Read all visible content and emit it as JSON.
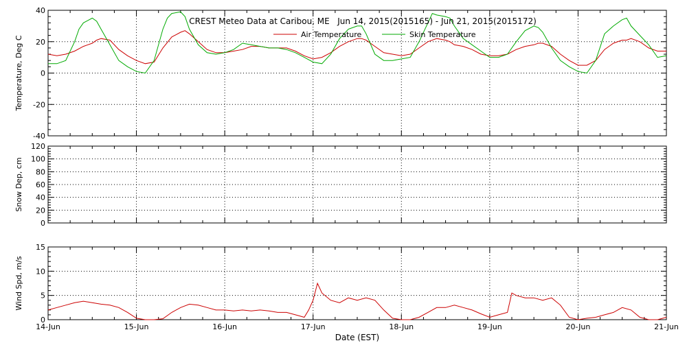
{
  "title": "CREST Meteo Data at Caribou, ME   Jun 14, 2015(2015165) - Jun 21, 2015(2015172)",
  "xlabel": "Date (EST)",
  "x_ticks": [
    "14-Jun",
    "15-Jun",
    "16-Jun",
    "17-Jun",
    "18-Jun",
    "19-Jun",
    "20-Jun",
    "21-Jun"
  ],
  "colors": {
    "air": "#cc0000",
    "skin": "#00aa00",
    "grid": "#000000"
  },
  "chart_data": [
    {
      "type": "line",
      "ylabel": "Temperature, Deg C",
      "xlim": [
        0,
        7
      ],
      "ylim": [
        -40,
        40
      ],
      "yticks": [
        -40,
        -20,
        0,
        20,
        40
      ],
      "legend_position": "top-center",
      "series": [
        {
          "name": "Air Temperature",
          "color": "#cc0000",
          "x": [
            0,
            0.1,
            0.2,
            0.3,
            0.4,
            0.5,
            0.55,
            0.6,
            0.7,
            0.8,
            0.9,
            1.0,
            1.1,
            1.2,
            1.3,
            1.4,
            1.5,
            1.55,
            1.6,
            1.7,
            1.8,
            1.9,
            2.0,
            2.1,
            2.2,
            2.3,
            2.4,
            2.5,
            2.6,
            2.7,
            2.8,
            2.9,
            3.0,
            3.1,
            3.2,
            3.3,
            3.4,
            3.5,
            3.55,
            3.6,
            3.7,
            3.8,
            3.9,
            4.0,
            4.1,
            4.2,
            4.3,
            4.4,
            4.5,
            4.55,
            4.6,
            4.7,
            4.8,
            4.9,
            5.0,
            5.1,
            5.2,
            5.3,
            5.4,
            5.5,
            5.55,
            5.6,
            5.7,
            5.8,
            5.9,
            6.0,
            6.1,
            6.2,
            6.3,
            6.4,
            6.5,
            6.55,
            6.6,
            6.7,
            6.8,
            6.9,
            7.0
          ],
          "y": [
            12,
            11,
            12,
            14,
            17,
            19,
            21,
            22,
            21,
            15,
            11,
            8,
            6,
            7,
            16,
            23,
            26,
            27,
            25,
            20,
            15,
            13,
            13,
            14,
            15,
            17,
            17,
            16,
            16,
            16,
            14,
            11,
            9,
            10,
            13,
            17,
            20,
            22,
            22,
            21,
            17,
            13,
            12,
            11,
            12,
            16,
            20,
            22,
            21,
            20,
            18,
            17,
            15,
            12,
            11,
            11,
            12,
            15,
            17,
            18,
            19,
            19,
            17,
            12,
            8,
            5,
            5,
            8,
            15,
            19,
            21,
            21,
            22,
            20,
            16,
            14,
            14
          ]
        },
        {
          "name": "Skin Temperature",
          "color": "#00aa00",
          "x": [
            0,
            0.1,
            0.2,
            0.3,
            0.35,
            0.4,
            0.5,
            0.55,
            0.6,
            0.7,
            0.8,
            0.9,
            1.0,
            1.1,
            1.2,
            1.3,
            1.35,
            1.4,
            1.5,
            1.55,
            1.6,
            1.7,
            1.8,
            1.9,
            2.0,
            2.1,
            2.2,
            2.3,
            2.4,
            2.5,
            2.6,
            2.7,
            2.8,
            2.9,
            3.0,
            3.1,
            3.2,
            3.3,
            3.4,
            3.5,
            3.55,
            3.6,
            3.7,
            3.8,
            3.9,
            4.0,
            4.1,
            4.2,
            4.3,
            4.35,
            4.4,
            4.5,
            4.55,
            4.6,
            4.7,
            4.8,
            4.9,
            5.0,
            5.1,
            5.2,
            5.3,
            5.4,
            5.5,
            5.55,
            5.6,
            5.7,
            5.8,
            5.9,
            6.0,
            6.1,
            6.2,
            6.3,
            6.4,
            6.5,
            6.55,
            6.6,
            6.7,
            6.8,
            6.9,
            7.0
          ],
          "y": [
            6,
            6,
            8,
            20,
            28,
            32,
            35,
            33,
            28,
            18,
            8,
            4,
            1,
            0,
            8,
            28,
            35,
            38,
            39,
            36,
            28,
            18,
            13,
            12,
            13,
            15,
            19,
            18,
            17,
            16,
            16,
            15,
            13,
            10,
            7,
            6,
            12,
            22,
            28,
            30,
            30,
            25,
            12,
            8,
            8,
            9,
            10,
            20,
            32,
            38,
            37,
            36,
            35,
            30,
            22,
            18,
            14,
            10,
            10,
            12,
            20,
            27,
            30,
            29,
            26,
            16,
            8,
            4,
            1,
            0,
            8,
            25,
            30,
            34,
            35,
            30,
            24,
            18,
            10,
            11
          ]
        }
      ]
    },
    {
      "type": "line",
      "ylabel": "Snow Dep, cm",
      "xlim": [
        0,
        7
      ],
      "ylim": [
        0,
        120
      ],
      "yticks": [
        0,
        20,
        40,
        60,
        80,
        100,
        120
      ],
      "series": []
    },
    {
      "type": "line",
      "ylabel": "Wind Spd, m/s",
      "xlim": [
        0,
        7
      ],
      "ylim": [
        0,
        15
      ],
      "yticks": [
        0,
        5,
        10,
        15
      ],
      "series": [
        {
          "name": "",
          "color": "#cc0000",
          "x": [
            0,
            0.1,
            0.2,
            0.3,
            0.4,
            0.5,
            0.6,
            0.7,
            0.8,
            0.9,
            1.0,
            1.1,
            1.2,
            1.3,
            1.4,
            1.5,
            1.6,
            1.7,
            1.8,
            1.9,
            2.0,
            2.1,
            2.2,
            2.3,
            2.4,
            2.5,
            2.6,
            2.7,
            2.8,
            2.9,
            2.95,
            3.0,
            3.05,
            3.1,
            3.2,
            3.3,
            3.4,
            3.5,
            3.6,
            3.7,
            3.8,
            3.9,
            4.0,
            4.1,
            4.2,
            4.3,
            4.4,
            4.5,
            4.6,
            4.7,
            4.8,
            4.9,
            5.0,
            5.1,
            5.2,
            5.25,
            5.3,
            5.4,
            5.5,
            5.6,
            5.7,
            5.8,
            5.9,
            6.0,
            6.1,
            6.2,
            6.3,
            6.4,
            6.5,
            6.6,
            6.7,
            6.8,
            6.9,
            7.0
          ],
          "y": [
            2,
            2.5,
            3,
            3.5,
            3.8,
            3.5,
            3.2,
            3,
            2.5,
            1.5,
            0.3,
            0,
            0,
            0.2,
            1.5,
            2.5,
            3.2,
            3,
            2.5,
            2,
            2,
            1.8,
            2,
            1.8,
            2,
            1.8,
            1.5,
            1.5,
            1,
            0.5,
            2,
            4,
            7.5,
            5.5,
            4,
            3.5,
            4.5,
            4,
            4.5,
            4,
            2,
            0.3,
            0,
            0,
            0.5,
            1.5,
            2.5,
            2.5,
            3,
            2.5,
            2,
            1.2,
            0.5,
            1,
            1.5,
            5.5,
            5,
            4.5,
            4.5,
            4,
            4.5,
            3,
            0.5,
            0,
            0.3,
            0.5,
            1,
            1.5,
            2.5,
            2,
            0.5,
            0,
            0,
            0.5
          ]
        }
      ]
    }
  ]
}
